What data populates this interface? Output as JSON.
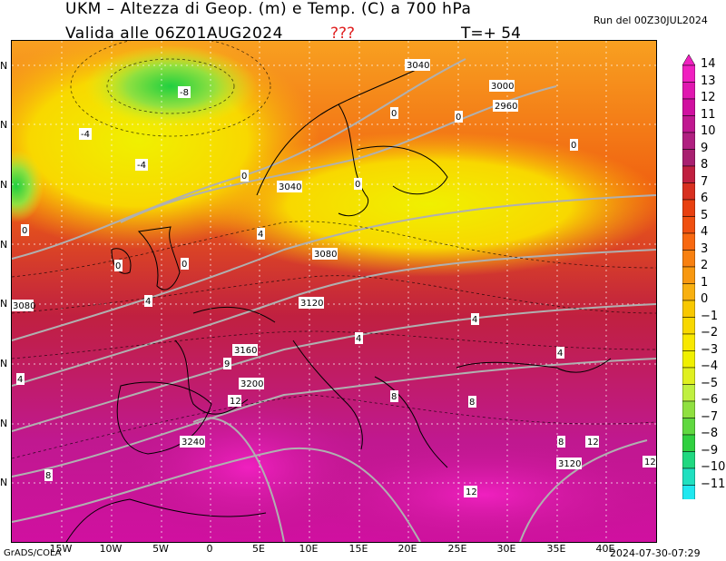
{
  "header": {
    "title": "UKM – Altezza di Geop. (m) e Temp. (C) a 700 hPa",
    "valid": "Valida alle 06Z01AUG2024",
    "flag": "???",
    "timestep": "T=+ 54",
    "run": "Run del 00Z30JUL2024"
  },
  "footer": {
    "credit": "GrADS/COLA",
    "timestamp": "2024-07-30-07:29"
  },
  "map": {
    "longitude_labels": [
      "15W",
      "10W",
      "5W",
      "0",
      "5E",
      "10E",
      "15E",
      "20E",
      "25E",
      "30E",
      "35E",
      "40E"
    ],
    "latitude_labels": [
      "N",
      "N",
      "N",
      "N",
      "N",
      "N",
      "N",
      "N"
    ],
    "height_labels": [
      "3040",
      "3000",
      "2960",
      "3040",
      "3080",
      "3080",
      "3120",
      "3160",
      "3200",
      "3240",
      "3120"
    ],
    "temp_labels": [
      "-8",
      "-4",
      "-4",
      "0",
      "0",
      "0",
      "0",
      "0",
      "0",
      "0",
      "0",
      "4",
      "4",
      "4",
      "4",
      "4",
      "4",
      "8",
      "8",
      "8",
      "8",
      "9",
      "12",
      "12",
      "12",
      "12"
    ]
  },
  "colorbar": {
    "levels": [
      "14",
      "13",
      "12",
      "11",
      "10",
      "9",
      "8",
      "7",
      "6",
      "5",
      "4",
      "3",
      "2",
      "1",
      "0",
      "−1",
      "−2",
      "−3",
      "−4",
      "−5",
      "−6",
      "−7",
      "−8",
      "−9",
      "−10",
      "−11"
    ],
    "colors": [
      "#f020c0",
      "#e018b0",
      "#d010a0",
      "#c01890",
      "#b02080",
      "#a82070",
      "#c02040",
      "#d83020",
      "#e84010",
      "#f05010",
      "#f86810",
      "#f88010",
      "#f89810",
      "#f8b010",
      "#f8c800",
      "#f8d800",
      "#f8e800",
      "#f0f000",
      "#e0f020",
      "#c0f040",
      "#90e040",
      "#60d840",
      "#30d040",
      "#20d880",
      "#20e0c0",
      "#20e8f0"
    ]
  }
}
